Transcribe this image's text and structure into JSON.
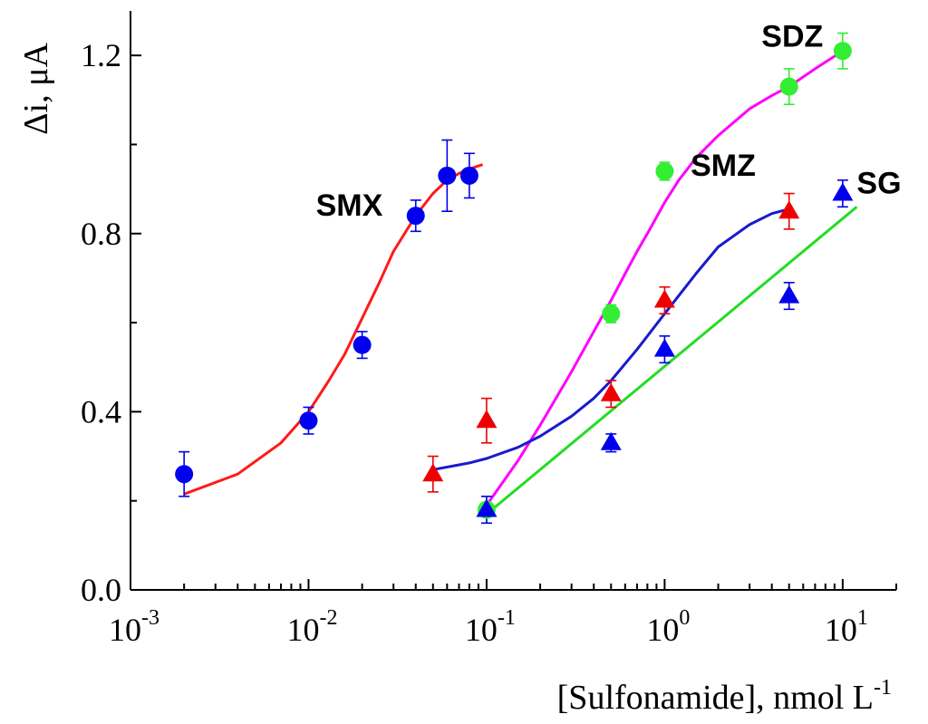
{
  "chart_data": {
    "type": "scatter",
    "title": "",
    "xlabel": "[Sulfonamide], nmol L",
    "xlabel_sup": "-1",
    "ylabel": "Δi, μA",
    "xscale": "log",
    "xlim": [
      0.001,
      20
    ],
    "ylim": [
      0.0,
      1.3
    ],
    "x_ticks": [
      {
        "value": 0.001,
        "base": "10",
        "exp": "-3"
      },
      {
        "value": 0.01,
        "base": "10",
        "exp": "-2"
      },
      {
        "value": 0.1,
        "base": "10",
        "exp": "-1"
      },
      {
        "value": 1,
        "base": "10",
        "exp": "0"
      },
      {
        "value": 10,
        "base": "10",
        "exp": "1"
      }
    ],
    "y_ticks": [
      {
        "value": 0.0,
        "label": "0.0"
      },
      {
        "value": 0.4,
        "label": "0.4"
      },
      {
        "value": 0.8,
        "label": "0.8"
      },
      {
        "value": 1.2,
        "label": "1.2"
      }
    ],
    "series": [
      {
        "name": "SMX",
        "marker": "circle",
        "marker_color": "#0000ee",
        "error_color": "#0000ee",
        "line_color": "#ff1a1a",
        "x": [
          0.002,
          0.01,
          0.02,
          0.04,
          0.06,
          0.08
        ],
        "y": [
          0.26,
          0.38,
          0.55,
          0.84,
          0.93,
          0.93
        ],
        "err": [
          0.05,
          0.03,
          0.03,
          0.035,
          0.08,
          0.05
        ],
        "fit_x": [
          0.002,
          0.004,
          0.007,
          0.01,
          0.013,
          0.016,
          0.02,
          0.025,
          0.03,
          0.04,
          0.05,
          0.06,
          0.07,
          0.08,
          0.095
        ],
        "fit_y": [
          0.215,
          0.26,
          0.33,
          0.4,
          0.47,
          0.53,
          0.61,
          0.69,
          0.76,
          0.84,
          0.89,
          0.92,
          0.935,
          0.945,
          0.955
        ],
        "label_anchor": [
          0.011,
          0.84
        ]
      },
      {
        "name": "SDZ",
        "marker": "circle",
        "marker_color": "#33ee33",
        "error_color": "#33ee33",
        "line_color": "#ff00ff",
        "x": [
          0.1,
          0.5,
          1,
          5,
          10
        ],
        "y": [
          0.18,
          0.62,
          0.94,
          1.13,
          1.21
        ],
        "err": [
          0.03,
          0.02,
          0.02,
          0.04,
          0.04
        ],
        "fit_x": [
          0.1,
          0.15,
          0.2,
          0.3,
          0.4,
          0.5,
          0.6,
          0.7,
          0.8,
          1.0,
          1.2,
          1.5,
          2,
          3,
          4,
          5,
          7,
          10
        ],
        "fit_y": [
          0.19,
          0.29,
          0.37,
          0.49,
          0.58,
          0.65,
          0.71,
          0.76,
          0.8,
          0.87,
          0.92,
          0.97,
          1.02,
          1.08,
          1.11,
          1.13,
          1.17,
          1.21
        ],
        "label_anchor": [
          3.5,
          1.22
        ]
      },
      {
        "name": "SMZ",
        "marker": "triangle",
        "marker_color": "#ee0000",
        "error_color": "#ee0000",
        "line_color": "#1a1acc",
        "x": [
          0.05,
          0.1,
          0.5,
          1,
          5
        ],
        "y": [
          0.26,
          0.38,
          0.44,
          0.65,
          0.85
        ],
        "err": [
          0.04,
          0.05,
          0.03,
          0.03,
          0.04
        ],
        "fit_x": [
          0.05,
          0.08,
          0.1,
          0.15,
          0.2,
          0.3,
          0.4,
          0.5,
          0.7,
          1.0,
          1.5,
          2,
          3,
          4,
          5
        ],
        "fit_y": [
          0.27,
          0.285,
          0.295,
          0.32,
          0.345,
          0.39,
          0.43,
          0.47,
          0.54,
          0.62,
          0.71,
          0.77,
          0.82,
          0.845,
          0.855
        ],
        "label_anchor": [
          1.4,
          0.93
        ]
      },
      {
        "name": "SG",
        "marker": "triangle",
        "marker_color": "#0000ee",
        "error_color": "#0000ee",
        "line_color": "#22dd22",
        "x": [
          0.1,
          0.5,
          1,
          5,
          10
        ],
        "y": [
          0.18,
          0.33,
          0.54,
          0.66,
          0.89
        ],
        "err": [
          0.03,
          0.02,
          0.03,
          0.03,
          0.03
        ],
        "fit_x": [
          0.1,
          12
        ],
        "fit_y": [
          0.17,
          0.86
        ],
        "label_anchor": [
          12,
          0.89
        ]
      }
    ]
  }
}
